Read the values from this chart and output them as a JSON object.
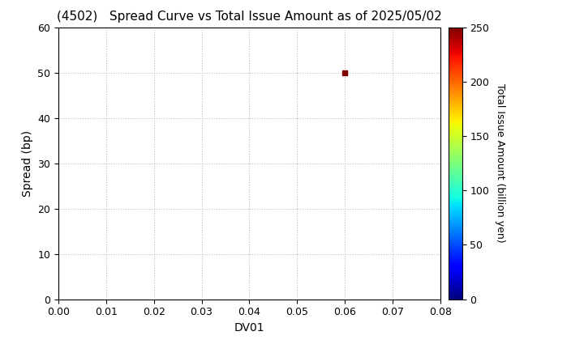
{
  "title": "(4502)   Spread Curve vs Total Issue Amount as of 2025/05/02",
  "xlabel": "DV01",
  "ylabel": "Spread (bp)",
  "colorbar_label": "Total Issue Amount (billion yen)",
  "xlim": [
    0.0,
    0.08
  ],
  "ylim": [
    0,
    60
  ],
  "xticks": [
    0.0,
    0.01,
    0.02,
    0.03,
    0.04,
    0.05,
    0.06,
    0.07,
    0.08
  ],
  "yticks": [
    0,
    10,
    20,
    30,
    40,
    50,
    60
  ],
  "colorbar_ticks": [
    0,
    50,
    100,
    150,
    200,
    250
  ],
  "colorbar_range": [
    0,
    250
  ],
  "scatter_x": [
    0.06
  ],
  "scatter_y": [
    50
  ],
  "scatter_values": [
    250
  ],
  "grid_color": "#bbbbbb",
  "background_color": "#ffffff",
  "title_fontsize": 11,
  "axis_fontsize": 10,
  "tick_fontsize": 9,
  "colorbar_fontsize": 9
}
